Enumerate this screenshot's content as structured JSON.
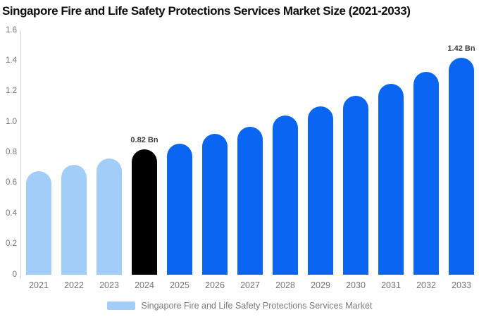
{
  "title": "Singapore Fire and Life Safety Protections Services Market Size (2021-2033)",
  "legend": {
    "label": "Singapore Fire and Life Safety Protections Services Market",
    "swatch_color": "#a3cdf9"
  },
  "chart_data": {
    "type": "bar",
    "title": "Singapore Fire and Life Safety Protections Services Market Size (2021-2033)",
    "categories": [
      "2021",
      "2022",
      "2023",
      "2024",
      "2025",
      "2026",
      "2027",
      "2028",
      "2029",
      "2030",
      "2031",
      "2032",
      "2033"
    ],
    "values": [
      0.68,
      0.72,
      0.76,
      0.82,
      0.86,
      0.92,
      0.97,
      1.04,
      1.1,
      1.17,
      1.25,
      1.33,
      1.42
    ],
    "unit": "Bn",
    "bar_colors": [
      "#a3cdf9",
      "#a3cdf9",
      "#a3cdf9",
      "#000000",
      "#0a66f2",
      "#0a66f2",
      "#0a66f2",
      "#0a66f2",
      "#0a66f2",
      "#0a66f2",
      "#0a66f2",
      "#0a66f2",
      "#0a66f2"
    ],
    "color_roles": {
      "historical": "#a3cdf9",
      "base_year": "#000000",
      "forecast": "#0a66f2"
    },
    "annotations": [
      {
        "category": "2024",
        "text": "0.82 Bn"
      },
      {
        "category": "2033",
        "text": "1.42 Bn"
      }
    ],
    "xlabel": "",
    "ylabel": "",
    "ylim": [
      0,
      1.6
    ],
    "yticks": [
      "0",
      "0.2",
      "0.4",
      "0.6",
      "0.8",
      "1.0",
      "1.2",
      "1.4",
      "1.6"
    ],
    "grid": false,
    "legend_position": "bottom-center",
    "text_colors": {
      "axis_text": "#757575",
      "data_label": "#3d3d3d",
      "axis_line": "#d6d6d6"
    }
  }
}
